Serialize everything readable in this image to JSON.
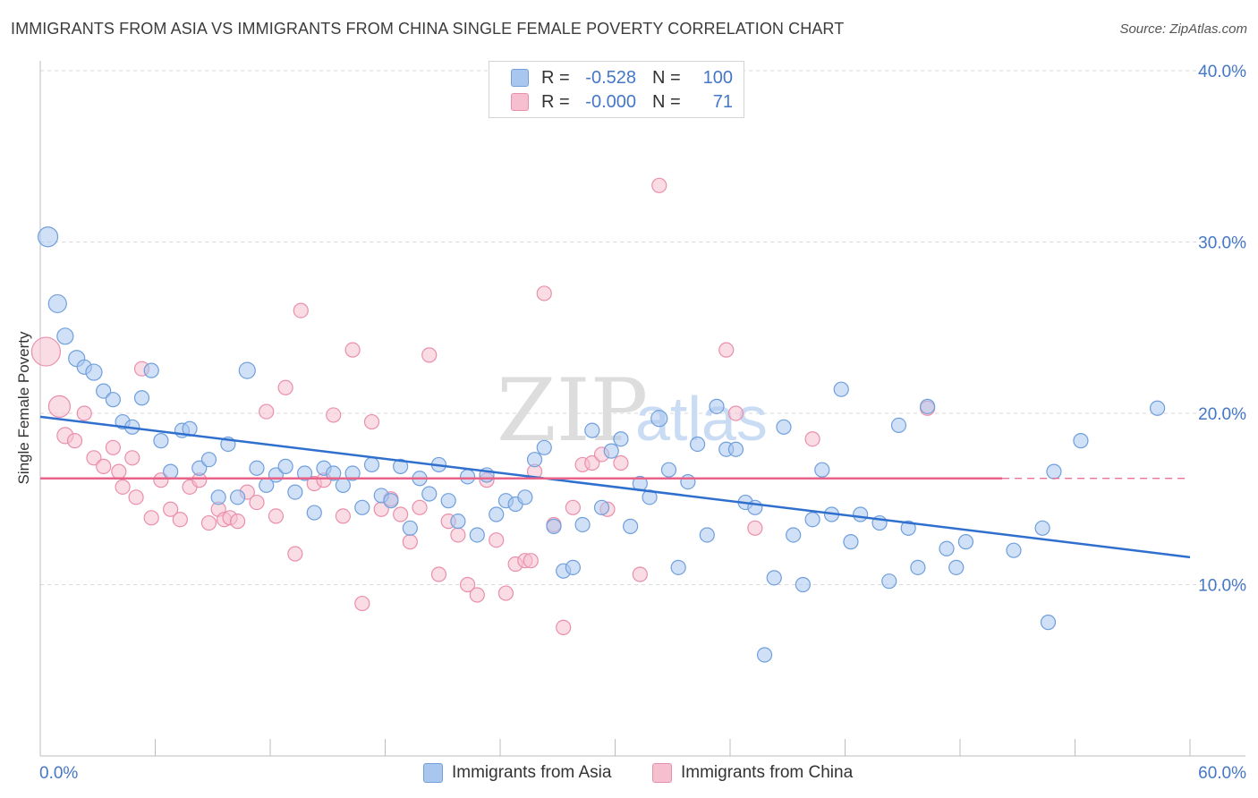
{
  "header": {
    "title": "IMMIGRANTS FROM ASIA VS IMMIGRANTS FROM CHINA SINGLE FEMALE POVERTY CORRELATION CHART",
    "source": "Source: ZipAtlas.com"
  },
  "watermark": {
    "zip": "ZIP",
    "atlas": "atlas"
  },
  "stats_legend": [
    {
      "r_label": "R =",
      "r_value": "-0.528",
      "n_label": "N =",
      "n_value": "100"
    },
    {
      "r_label": "R =",
      "r_value": "-0.000",
      "n_label": "N =",
      "n_value": "71"
    }
  ],
  "colors": {
    "asia_fill": "#a9c7ee",
    "asia_stroke": "#6f9fdc",
    "asia_line": "#2f6fce",
    "china_fill": "#f6bfd0",
    "china_stroke": "#ea8fab",
    "china_line": "#e8638a",
    "tick_label": "#4577c8",
    "grid": "#dadada"
  },
  "chart_data": {
    "type": "scatter",
    "title": "IMMIGRANTS FROM ASIA VS IMMIGRANTS FROM CHINA SINGLE FEMALE POVERTY CORRELATION CHART",
    "xlabel": "",
    "ylabel": "Single Female Poverty",
    "xlim": [
      0,
      60
    ],
    "ylim": [
      0,
      40
    ],
    "x_tick_labels": [
      "0.0%",
      "60.0%"
    ],
    "y_ticks": [
      10,
      20,
      30,
      40
    ],
    "y_tick_labels": [
      "10.0%",
      "20.0%",
      "30.0%",
      "40.0%"
    ],
    "grid": "horizontal dashed",
    "legend_position": "top-center and bottom",
    "series": [
      {
        "name": "Immigrants from Asia",
        "r": -0.528,
        "n": 100,
        "trend": {
          "x": [
            0,
            60
          ],
          "y": [
            19.8,
            11.6
          ],
          "dashed_from": null
        },
        "points": [
          [
            0.4,
            30.3,
            11
          ],
          [
            0.9,
            26.4,
            10
          ],
          [
            1.3,
            24.5,
            9
          ],
          [
            1.9,
            23.2,
            9
          ],
          [
            2.3,
            22.7,
            8
          ],
          [
            2.8,
            22.4,
            9
          ],
          [
            3.3,
            21.3,
            8
          ],
          [
            3.8,
            20.8,
            8
          ],
          [
            4.3,
            19.5,
            8
          ],
          [
            4.8,
            19.2,
            8
          ],
          [
            5.3,
            20.9,
            8
          ],
          [
            5.8,
            22.5,
            8
          ],
          [
            6.3,
            18.4,
            8
          ],
          [
            6.8,
            16.6,
            8
          ],
          [
            7.4,
            19.0,
            8
          ],
          [
            7.8,
            19.1,
            8
          ],
          [
            8.3,
            16.8,
            8
          ],
          [
            8.8,
            17.3,
            8
          ],
          [
            9.3,
            15.1,
            8
          ],
          [
            9.8,
            18.2,
            8
          ],
          [
            10.3,
            15.1,
            8
          ],
          [
            10.8,
            22.5,
            9
          ],
          [
            11.3,
            16.8,
            8
          ],
          [
            11.8,
            15.8,
            8
          ],
          [
            12.3,
            16.4,
            8
          ],
          [
            12.8,
            16.9,
            8
          ],
          [
            13.3,
            15.4,
            8
          ],
          [
            13.8,
            16.5,
            8
          ],
          [
            14.3,
            14.2,
            8
          ],
          [
            14.8,
            16.8,
            8
          ],
          [
            15.3,
            16.5,
            8
          ],
          [
            15.8,
            15.8,
            8
          ],
          [
            16.3,
            16.5,
            8
          ],
          [
            16.8,
            14.5,
            8
          ],
          [
            17.3,
            17.0,
            8
          ],
          [
            17.8,
            15.2,
            8
          ],
          [
            18.3,
            14.9,
            8
          ],
          [
            18.8,
            16.9,
            8
          ],
          [
            19.3,
            13.3,
            8
          ],
          [
            19.8,
            16.2,
            8
          ],
          [
            20.3,
            15.3,
            8
          ],
          [
            20.8,
            17.0,
            8
          ],
          [
            21.3,
            14.9,
            8
          ],
          [
            21.8,
            13.7,
            8
          ],
          [
            22.3,
            16.3,
            8
          ],
          [
            22.8,
            12.9,
            8
          ],
          [
            23.3,
            16.4,
            8
          ],
          [
            23.8,
            14.1,
            8
          ],
          [
            24.3,
            14.9,
            8
          ],
          [
            24.8,
            14.7,
            8
          ],
          [
            25.3,
            15.1,
            8
          ],
          [
            25.8,
            17.3,
            8
          ],
          [
            26.3,
            18.0,
            8
          ],
          [
            26.8,
            13.4,
            8
          ],
          [
            27.3,
            10.8,
            8
          ],
          [
            27.8,
            11.0,
            8
          ],
          [
            28.3,
            13.5,
            8
          ],
          [
            28.8,
            19.0,
            8
          ],
          [
            29.3,
            14.5,
            8
          ],
          [
            29.8,
            17.8,
            8
          ],
          [
            30.3,
            18.5,
            8
          ],
          [
            30.8,
            13.4,
            8
          ],
          [
            31.3,
            15.9,
            8
          ],
          [
            31.8,
            15.1,
            8
          ],
          [
            32.3,
            19.7,
            9
          ],
          [
            32.8,
            16.7,
            8
          ],
          [
            33.3,
            11.0,
            8
          ],
          [
            33.8,
            16.0,
            8
          ],
          [
            34.3,
            18.2,
            8
          ],
          [
            34.8,
            12.9,
            8
          ],
          [
            35.3,
            20.4,
            8
          ],
          [
            35.8,
            17.9,
            8
          ],
          [
            36.3,
            17.9,
            8
          ],
          [
            36.8,
            14.8,
            8
          ],
          [
            37.3,
            14.5,
            8
          ],
          [
            37.8,
            5.9,
            8
          ],
          [
            38.3,
            10.4,
            8
          ],
          [
            38.8,
            19.2,
            8
          ],
          [
            39.3,
            12.9,
            8
          ],
          [
            39.8,
            10.0,
            8
          ],
          [
            40.3,
            13.8,
            8
          ],
          [
            40.8,
            16.7,
            8
          ],
          [
            41.3,
            14.1,
            8
          ],
          [
            41.8,
            21.4,
            8
          ],
          [
            42.3,
            12.5,
            8
          ],
          [
            42.8,
            14.1,
            8
          ],
          [
            43.8,
            13.6,
            8
          ],
          [
            44.3,
            10.2,
            8
          ],
          [
            44.8,
            19.3,
            8
          ],
          [
            45.3,
            13.3,
            8
          ],
          [
            45.8,
            11.0,
            8
          ],
          [
            46.3,
            20.4,
            8
          ],
          [
            47.3,
            12.1,
            8
          ],
          [
            47.8,
            11.0,
            8
          ],
          [
            48.3,
            12.5,
            8
          ],
          [
            50.8,
            12.0,
            8
          ],
          [
            52.3,
            13.3,
            8
          ],
          [
            52.6,
            7.8,
            8
          ],
          [
            52.9,
            16.6,
            8
          ],
          [
            54.3,
            18.4,
            8
          ],
          [
            58.3,
            20.3,
            8
          ]
        ]
      },
      {
        "name": "Immigrants from China",
        "r": -0.0,
        "n": 71,
        "trend": {
          "x": [
            0,
            60
          ],
          "y": [
            16.2,
            16.2
          ],
          "dashed_from": 50.2
        },
        "points": [
          [
            0.3,
            23.6,
            16
          ],
          [
            1.0,
            20.4,
            12
          ],
          [
            1.3,
            18.7,
            9
          ],
          [
            1.8,
            18.4,
            8
          ],
          [
            2.3,
            20.0,
            8
          ],
          [
            2.8,
            17.4,
            8
          ],
          [
            3.3,
            16.9,
            8
          ],
          [
            3.8,
            18.0,
            8
          ],
          [
            4.1,
            16.6,
            8
          ],
          [
            4.3,
            15.7,
            8
          ],
          [
            4.8,
            17.4,
            8
          ],
          [
            5.0,
            15.1,
            8
          ],
          [
            5.3,
            22.6,
            8
          ],
          [
            5.8,
            13.9,
            8
          ],
          [
            6.3,
            16.1,
            8
          ],
          [
            6.8,
            14.4,
            8
          ],
          [
            7.3,
            13.8,
            8
          ],
          [
            7.8,
            15.7,
            8
          ],
          [
            8.3,
            16.1,
            8
          ],
          [
            8.8,
            13.6,
            8
          ],
          [
            9.3,
            14.4,
            8
          ],
          [
            9.6,
            13.8,
            8
          ],
          [
            9.9,
            13.9,
            8
          ],
          [
            10.3,
            13.7,
            8
          ],
          [
            10.8,
            15.4,
            8
          ],
          [
            11.3,
            14.8,
            8
          ],
          [
            11.8,
            20.1,
            8
          ],
          [
            12.3,
            14.0,
            8
          ],
          [
            12.8,
            21.5,
            8
          ],
          [
            13.3,
            11.8,
            8
          ],
          [
            13.6,
            26.0,
            8
          ],
          [
            14.3,
            15.9,
            8
          ],
          [
            14.8,
            16.1,
            8
          ],
          [
            15.3,
            19.9,
            8
          ],
          [
            15.8,
            14.0,
            8
          ],
          [
            16.3,
            23.7,
            8
          ],
          [
            16.8,
            8.9,
            8
          ],
          [
            17.3,
            19.5,
            8
          ],
          [
            17.8,
            14.4,
            8
          ],
          [
            18.3,
            15.0,
            8
          ],
          [
            18.8,
            14.1,
            8
          ],
          [
            19.3,
            12.5,
            8
          ],
          [
            19.8,
            14.5,
            8
          ],
          [
            20.3,
            23.4,
            8
          ],
          [
            20.8,
            10.6,
            8
          ],
          [
            21.3,
            13.7,
            8
          ],
          [
            21.8,
            12.9,
            8
          ],
          [
            22.3,
            10.0,
            8
          ],
          [
            22.8,
            9.4,
            8
          ],
          [
            23.3,
            16.1,
            8
          ],
          [
            23.8,
            12.6,
            8
          ],
          [
            24.3,
            9.5,
            8
          ],
          [
            24.8,
            11.2,
            8
          ],
          [
            25.3,
            11.4,
            8
          ],
          [
            25.6,
            11.4,
            8
          ],
          [
            25.8,
            16.6,
            8
          ],
          [
            26.3,
            27.0,
            8
          ],
          [
            26.8,
            13.5,
            8
          ],
          [
            27.3,
            7.5,
            8
          ],
          [
            27.8,
            14.5,
            8
          ],
          [
            28.3,
            17.0,
            8
          ],
          [
            28.8,
            17.1,
            8
          ],
          [
            29.3,
            17.6,
            8
          ],
          [
            29.6,
            14.4,
            8
          ],
          [
            30.3,
            17.1,
            8
          ],
          [
            31.3,
            10.6,
            8
          ],
          [
            32.3,
            33.3,
            8
          ],
          [
            35.8,
            23.7,
            8
          ],
          [
            36.3,
            20.0,
            8
          ],
          [
            37.3,
            13.3,
            8
          ],
          [
            40.3,
            18.5,
            8
          ],
          [
            46.3,
            20.3,
            8
          ]
        ]
      }
    ]
  }
}
